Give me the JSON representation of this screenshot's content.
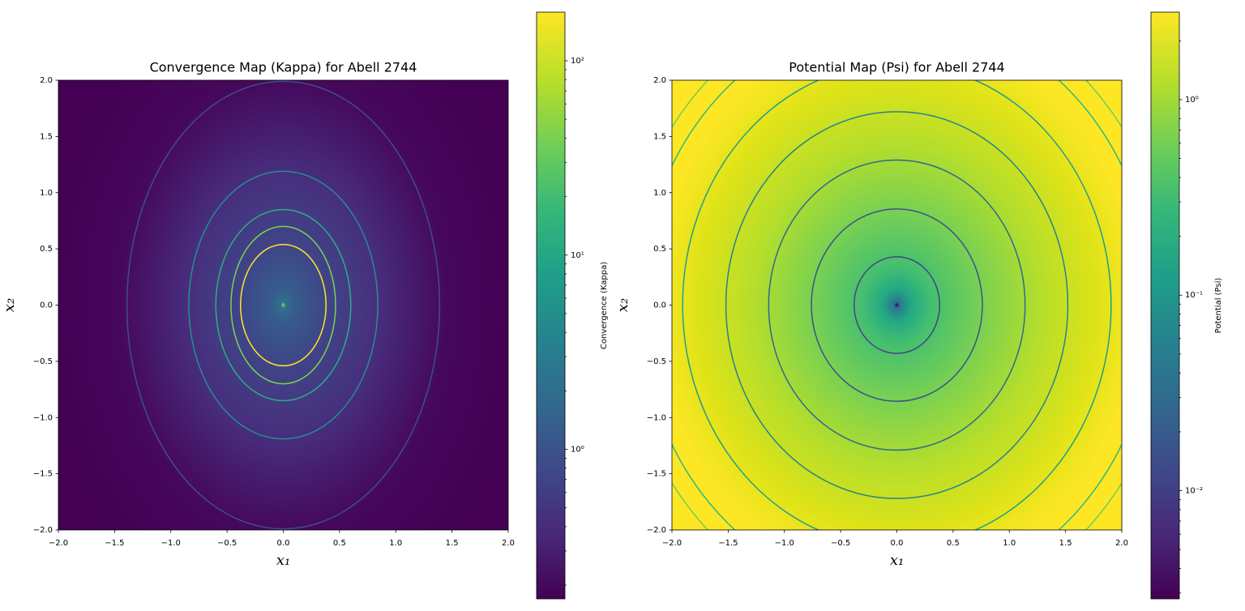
{
  "chart_data": [
    {
      "type": "contour",
      "title": "Convergence Map (Kappa) for Abell 2744",
      "xlabel": "x₁",
      "ylabel": "x₂",
      "xlim": [
        -2,
        2
      ],
      "ylim": [
        -2,
        2
      ],
      "xticks": [
        {
          "value": -2,
          "label": "−2.0"
        },
        {
          "value": -1.5,
          "label": "−1.5"
        },
        {
          "value": -1,
          "label": "−1.0"
        },
        {
          "value": -0.5,
          "label": "−0.5"
        },
        {
          "value": 0,
          "label": "0.0"
        },
        0.5,
        {
          "value": 1,
          "label": "1.0"
        },
        1.5,
        {
          "value": 2,
          "label": "2.0"
        }
      ],
      "yticks": [
        {
          "value": -2,
          "label": "−2.0"
        },
        {
          "value": -1.5,
          "label": "−1.5"
        },
        {
          "value": -1,
          "label": "−1.0"
        },
        {
          "value": -0.5,
          "label": "−0.5"
        },
        {
          "value": 0,
          "label": "0.0"
        },
        0.5,
        {
          "value": 1,
          "label": "1.0"
        },
        1.5,
        {
          "value": 2,
          "label": "2.0"
        }
      ],
      "contours": [
        {
          "color": "#3e4e8a",
          "rx": 1.39,
          "ry": 1.99
        },
        {
          "color": "#21918c",
          "rx": 0.84,
          "ry": 1.19
        },
        {
          "color": "#2ab07f",
          "rx": 0.6,
          "ry": 0.85
        },
        {
          "color": "#7ad151",
          "rx": 0.465,
          "ry": 0.7
        },
        {
          "color": "#fde725",
          "rx": 0.38,
          "ry": 0.54
        }
      ],
      "colorbar": {
        "label": "Convergence (Kappa)",
        "scale": "log",
        "lim": [
          0.17,
          178
        ],
        "ticks": [
          {
            "value": 1,
            "label": "10⁰"
          },
          {
            "value": 10,
            "label": "10¹"
          },
          {
            "value": 100,
            "label": "10²"
          }
        ],
        "minor_ticks": [
          0.2,
          0.3,
          0.4,
          0.5,
          0.6,
          0.7,
          0.8,
          0.9,
          2,
          3,
          4,
          5,
          6,
          7,
          8,
          9,
          20,
          30,
          40,
          50,
          60,
          70,
          80,
          90
        ]
      }
    },
    {
      "type": "contour",
      "title": "Potential Map (Psi) for Abell 2744",
      "xlabel": "x₁",
      "ylabel": "x₂",
      "xlim": [
        -2,
        2
      ],
      "ylim": [
        -2,
        2
      ],
      "xticks": [
        {
          "value": -2,
          "label": "−2.0"
        },
        {
          "value": -1.5,
          "label": "−1.5"
        },
        {
          "value": -1,
          "label": "−1.0"
        },
        {
          "value": -0.5,
          "label": "−0.5"
        },
        {
          "value": 0,
          "label": "0.0"
        },
        0.5,
        {
          "value": 1,
          "label": "1.0"
        },
        1.5,
        {
          "value": 2,
          "label": "2.0"
        }
      ],
      "yticks": [
        {
          "value": -2,
          "label": "−2.0"
        },
        {
          "value": -1.5,
          "label": "−1.5"
        },
        {
          "value": -1,
          "label": "−1.0"
        },
        {
          "value": -0.5,
          "label": "−0.5"
        },
        {
          "value": 0,
          "label": "0.0"
        },
        0.5,
        {
          "value": 1,
          "label": "1.0"
        },
        1.5,
        {
          "value": 2,
          "label": "2.0"
        }
      ],
      "contours": [
        {
          "color": "#414487",
          "rx": 0.38,
          "ry": 0.43
        },
        {
          "color": "#3b528b",
          "rx": 0.76,
          "ry": 0.855
        },
        {
          "color": "#31688e",
          "rx": 1.14,
          "ry": 1.29
        },
        {
          "color": "#26828e",
          "rx": 1.52,
          "ry": 1.72
        },
        {
          "color": "#1f9e89",
          "rx": 1.905,
          "ry": 2.15
        },
        {
          "color": "#35b779",
          "rx": 2.28,
          "ry": 2.58
        },
        {
          "color": "#6ccd5a",
          "rx": 2.44,
          "ry": 2.76
        }
      ],
      "colorbar": {
        "label": "Potential (Psi)",
        "scale": "log",
        "lim": [
          0.0028,
          2.8
        ],
        "ticks": [
          {
            "value": 0.01,
            "label": "10⁻²"
          },
          {
            "value": 0.1,
            "label": "10⁻¹"
          },
          {
            "value": 1,
            "label": "10⁰"
          }
        ],
        "minor_ticks": [
          0.003,
          0.004,
          0.005,
          0.006,
          0.007,
          0.008,
          0.009,
          0.02,
          0.03,
          0.04,
          0.05,
          0.06,
          0.07,
          0.08,
          0.09,
          0.2,
          0.3,
          0.4,
          0.5,
          0.6,
          0.7,
          0.8,
          0.9,
          2
        ]
      }
    }
  ]
}
